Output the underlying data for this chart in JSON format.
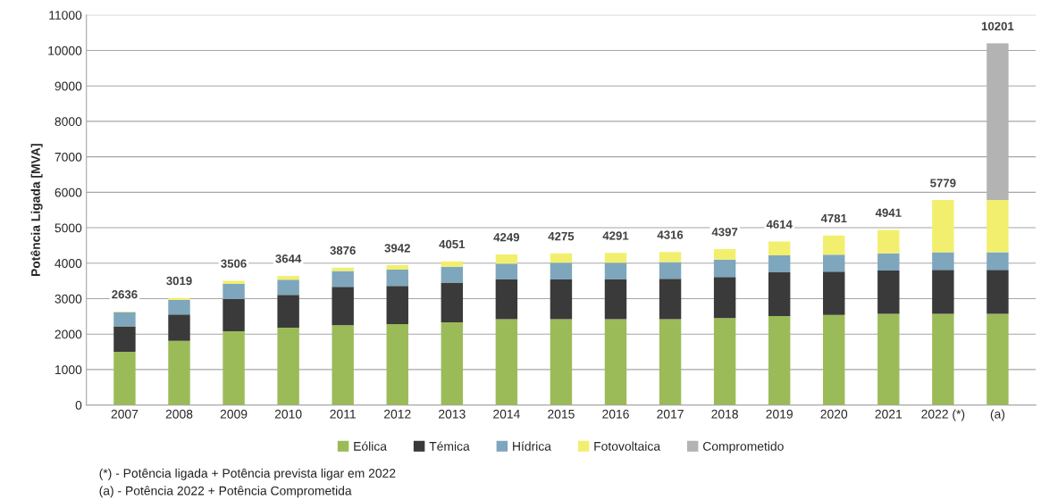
{
  "chart_data": {
    "type": "bar",
    "stacked": true,
    "ylabel": "Potência Ligada [MVA]",
    "categories": [
      "2007",
      "2008",
      "2009",
      "2010",
      "2011",
      "2012",
      "2013",
      "2014",
      "2015",
      "2016",
      "2017",
      "2018",
      "2019",
      "2020",
      "2021",
      "2022 (*)",
      "(a)"
    ],
    "series": [
      {
        "name": "Eólica",
        "color": "#9bbb59",
        "values": [
          1500,
          1810,
          2080,
          2180,
          2250,
          2280,
          2330,
          2420,
          2420,
          2420,
          2420,
          2450,
          2510,
          2540,
          2570,
          2570,
          2570
        ]
      },
      {
        "name": "Témica",
        "color": "#3a3a3a",
        "values": [
          720,
          745,
          905,
          925,
          1080,
          1080,
          1120,
          1120,
          1120,
          1120,
          1140,
          1160,
          1230,
          1220,
          1220,
          1240,
          1240
        ]
      },
      {
        "name": "Hídrica",
        "color": "#7ea6bd",
        "values": [
          400,
          405,
          430,
          430,
          450,
          455,
          450,
          450,
          470,
          470,
          470,
          490,
          480,
          480,
          490,
          500,
          500
        ]
      },
      {
        "name": "Fotovoltaica",
        "color": "#f2ef6e",
        "values": [
          16,
          59,
          91,
          109,
          96,
          127,
          151,
          259,
          265,
          281,
          286,
          297,
          394,
          541,
          661,
          1469,
          1469
        ]
      },
      {
        "name": "Comprometido",
        "color": "#b3b3b3",
        "values": [
          null,
          null,
          null,
          null,
          null,
          null,
          null,
          null,
          null,
          null,
          null,
          null,
          null,
          null,
          null,
          null,
          4422
        ]
      }
    ],
    "totals": [
      "2636",
      "3019",
      "3506",
      "3644",
      "3876",
      "3942",
      "4051",
      "4249",
      "4275",
      "4291",
      "4316",
      "4397",
      "4614",
      "4781",
      "4941",
      "5779",
      "10201"
    ],
    "ylim": [
      0,
      11000
    ],
    "yticks": [
      0,
      1000,
      2000,
      3000,
      4000,
      5000,
      6000,
      7000,
      8000,
      9000,
      10000,
      11000
    ],
    "grid": "y",
    "legend": "bottom",
    "annotations": [
      "(*) - Potência ligada + Potência prevista ligar em 2022",
      "(a) - Potência 2022 + Potência Comprometida"
    ]
  }
}
